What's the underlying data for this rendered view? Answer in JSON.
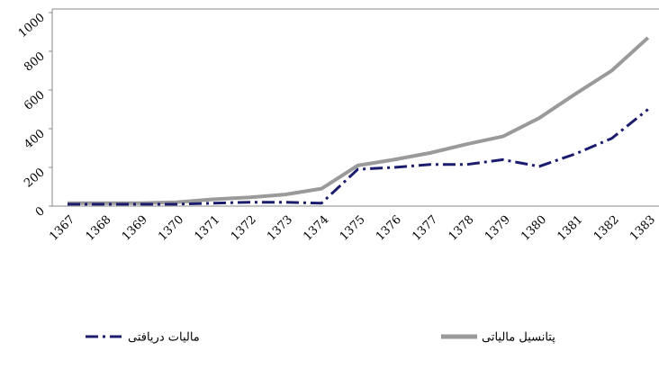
{
  "chart_data": {
    "type": "line",
    "categories": [
      "1367",
      "1368",
      "1369",
      "1370",
      "1371",
      "1372",
      "1373",
      "1374",
      "1375",
      "1376",
      "1377",
      "1378",
      "1379",
      "1380",
      "1381",
      "1382",
      "1383"
    ],
    "series": [
      {
        "name": "پتانسیل مالیاتی",
        "color": "#9a9a9a",
        "values": [
          15,
          15,
          15,
          20,
          35,
          45,
          60,
          90,
          210,
          240,
          275,
          320,
          360,
          455,
          580,
          700,
          870
        ]
      },
      {
        "name": "مالیات دریافتی",
        "color": "#1c1c6e",
        "values": [
          10,
          10,
          10,
          10,
          15,
          20,
          20,
          15,
          190,
          200,
          215,
          215,
          240,
          205,
          270,
          350,
          500
        ]
      }
    ],
    "ylim": [
      0,
      1000
    ],
    "yticks": [
      0,
      200,
      400,
      600,
      800,
      1000
    ],
    "grid": false
  }
}
